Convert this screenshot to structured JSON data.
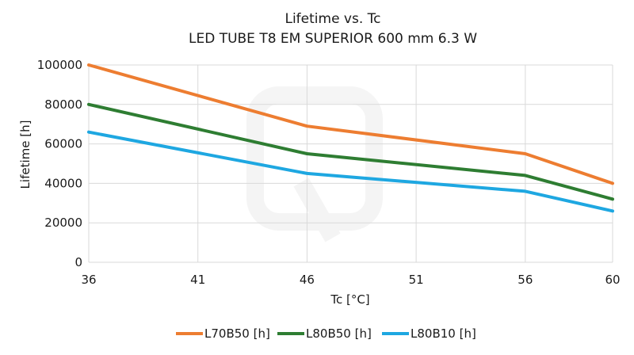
{
  "chart_data": {
    "type": "line",
    "title": "Lifetime vs. Tc",
    "subtitle": "LED TUBE T8 EM SUPERIOR 600 mm 6.3 W",
    "xlabel": "Tc [°C]",
    "ylabel": "Lifetime [h]",
    "x": [
      36,
      46,
      56,
      60
    ],
    "xticks": [
      "36",
      "41",
      "46",
      "51",
      "56",
      "60"
    ],
    "xlim": [
      36,
      60
    ],
    "yticks": [
      "0",
      "20000",
      "40000",
      "60000",
      "80000",
      "100000"
    ],
    "ylim": [
      0,
      100000
    ],
    "grid": true,
    "legend_position": "bottom",
    "series": [
      {
        "name": "L70B50 [h]",
        "color": "#ed7d31",
        "values": [
          100000,
          69000,
          55000,
          40000
        ]
      },
      {
        "name": "L80B50 [h]",
        "color": "#2e7d32",
        "values": [
          80000,
          55000,
          44000,
          32000
        ]
      },
      {
        "name": "L80B10 [h]",
        "color": "#1ea7e1",
        "values": [
          66000,
          45000,
          36000,
          26000
        ]
      }
    ]
  }
}
